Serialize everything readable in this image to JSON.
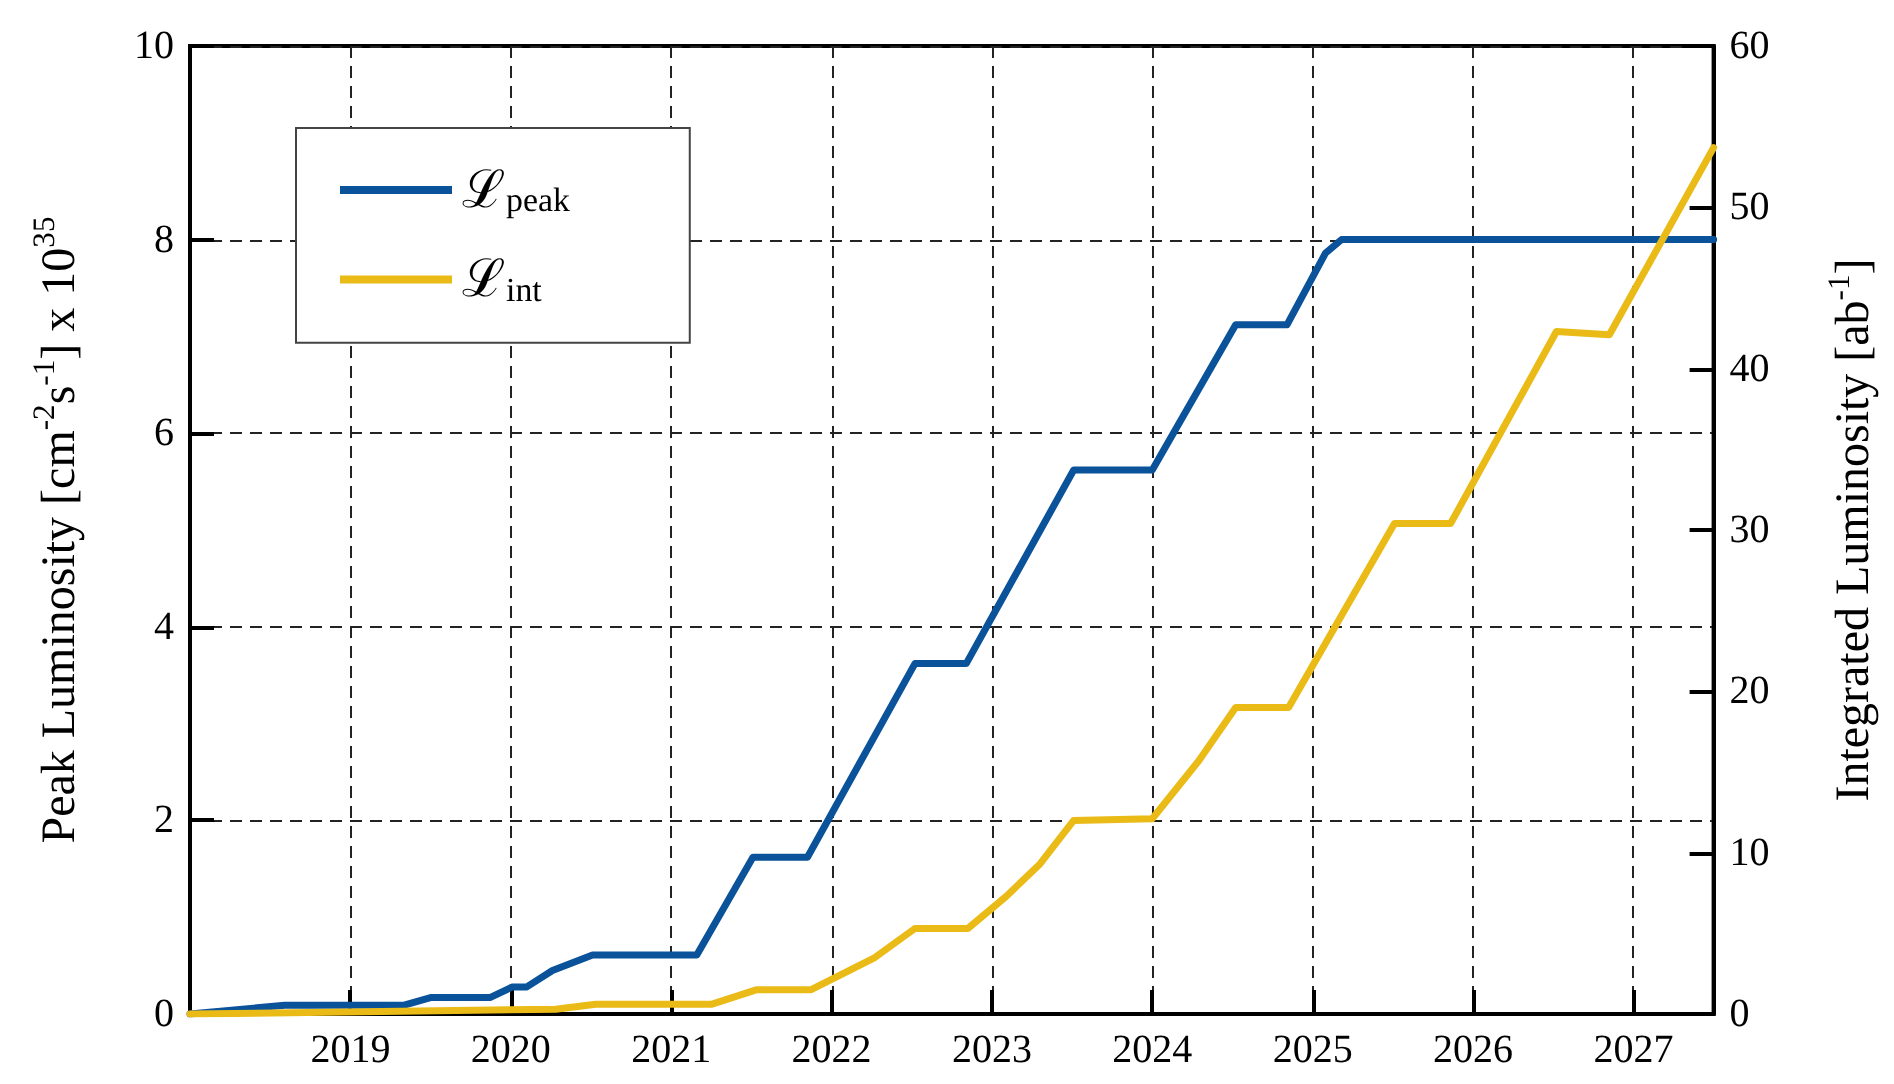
{
  "chart_data": {
    "type": "line",
    "xlabel": null,
    "ylabel": "Peak Luminosity [cm$^{-2}$s$^{-1}$] x 10$^{35}$",
    "y2label": "Integrated Luminosity [ab$^{-1}$]",
    "xlim": [
      2018,
      2027.5
    ],
    "xticks": [
      2019,
      2020,
      2021,
      2022,
      2023,
      2024,
      2025,
      2026,
      2027
    ],
    "ylim": [
      0,
      10
    ],
    "yticks": [
      0,
      2,
      4,
      6,
      8,
      10
    ],
    "y2lim": [
      0,
      60
    ],
    "y2ticks": [
      0,
      10,
      20,
      30,
      40,
      50,
      60
    ],
    "grid": true,
    "legend": "top left",
    "marker": "none",
    "line_style": "solid",
    "series": [
      {
        "name": "ℒ$_{peak}$",
        "color": "#0a5299",
        "axis": "y",
        "x": [
          2018,
          2018.59,
          2019.33,
          2019.5,
          2019.87,
          2020.01,
          2020.1,
          2020.26,
          2020.51,
          2021.16,
          2021.51,
          2021.85,
          2022.52,
          2022.84,
          2023.51,
          2024.0,
          2024.52,
          2024.84,
          2025.08,
          2025.18,
          2027.5
        ],
        "values": [
          0,
          0.09,
          0.09,
          0.17,
          0.17,
          0.28,
          0.28,
          0.45,
          0.61,
          0.61,
          1.62,
          1.62,
          3.62,
          3.62,
          5.62,
          5.62,
          7.12,
          7.12,
          7.86,
          8.0,
          8.0
        ]
      },
      {
        "name": "ℒ$_{int}$",
        "color": "#eabb16",
        "axis": "y2",
        "x": [
          2018,
          2020.28,
          2020.53,
          2021.25,
          2021.53,
          2021.87,
          2022.27,
          2022.52,
          2022.85,
          2023.09,
          2023.3,
          2023.51,
          2024.0,
          2024.29,
          2024.52,
          2024.85,
          2025.51,
          2025.86,
          2026.52,
          2026.85,
          2027.5
        ],
        "values": [
          0,
          0.3,
          0.6,
          0.6,
          1.5,
          1.5,
          3.5,
          5.3,
          5.3,
          7.3,
          9.3,
          12.0,
          12.1,
          15.7,
          19.0,
          19.0,
          30.4,
          30.4,
          42.3,
          42.1,
          53.7
        ]
      }
    ]
  }
}
